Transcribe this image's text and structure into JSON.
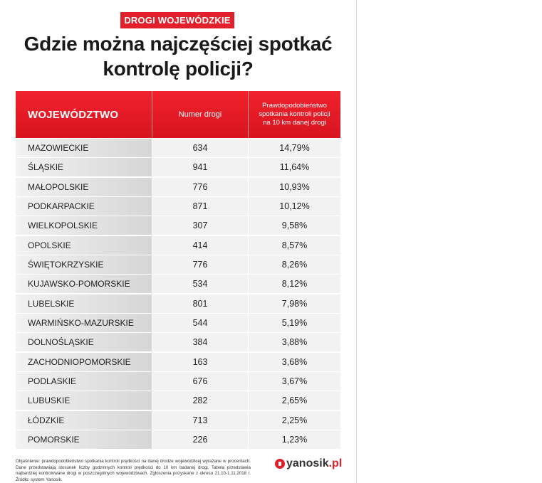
{
  "badge": "DROGI WOJEWÓDZKIE",
  "title_line1": "Gdzie można najczęściej spotkać",
  "title_line2": "kontrolę policji?",
  "table": {
    "headers": {
      "region": "WOJEWÓDZTWO",
      "road": "Numer drogi",
      "probability": "Prawdopodobieństwo spotkania kontroli policji na 10 km danej drogi"
    },
    "rows": [
      {
        "region": "MAZOWIECKIE",
        "road": "634",
        "probability": "14,79%"
      },
      {
        "region": "ŚLĄSKIE",
        "road": "941",
        "probability": "11,64%"
      },
      {
        "region": "MAŁOPOLSKIE",
        "road": "776",
        "probability": "10,93%"
      },
      {
        "region": "PODKARPACKIE",
        "road": "871",
        "probability": "10,12%"
      },
      {
        "region": "WIELKOPOLSKIE",
        "road": "307",
        "probability": "9,58%"
      },
      {
        "region": "OPOLSKIE",
        "road": "414",
        "probability": "8,57%"
      },
      {
        "region": "ŚWIĘTOKRZYSKIE",
        "road": "776",
        "probability": "8,26%"
      },
      {
        "region": "KUJAWSKO-POMORSKIE",
        "road": "534",
        "probability": "8,12%"
      },
      {
        "region": "LUBELSKIE",
        "road": "801",
        "probability": "7,98%"
      },
      {
        "region": "WARMIŃSKO-MAZURSKIE",
        "road": "544",
        "probability": "5,19%"
      },
      {
        "region": "DOLNOŚLĄSKIE",
        "road": "384",
        "probability": "3,88%"
      },
      {
        "region": "ZACHODNIOPOMORSKIE",
        "road": "163",
        "probability": "3,68%"
      },
      {
        "region": "PODLASKIE",
        "road": "676",
        "probability": "3,67%"
      },
      {
        "region": "LUBUSKIE",
        "road": "282",
        "probability": "2,65%"
      },
      {
        "region": "ŁÓDZKIE",
        "road": "713",
        "probability": "2,25%"
      },
      {
        "region": "POMORSKIE",
        "road": "226",
        "probability": "1,23%"
      }
    ]
  },
  "footnote": "Objaśnienie: prawdopodobieństwo spotkania kontroli prędkości na danej drodze wojewódzkiej wyrażane w procentach. Dane przedstawiają stosunek liczby godzinnych kontroli prędkości do 10 km badanej drogi. Tabela przedstawia najbardziej kontrolowane drogi w poszczególnych województwach. Zgłoszenia pozyskane z okresu 21.10-1.11.2018 r. Źródło: system Yanosik.",
  "logo": {
    "name": "yanosik",
    "tld": ".pl",
    "icon": "yanosik-logo-icon",
    "color": "#e2202b"
  },
  "colors": {
    "accent": "#e2202b"
  }
}
